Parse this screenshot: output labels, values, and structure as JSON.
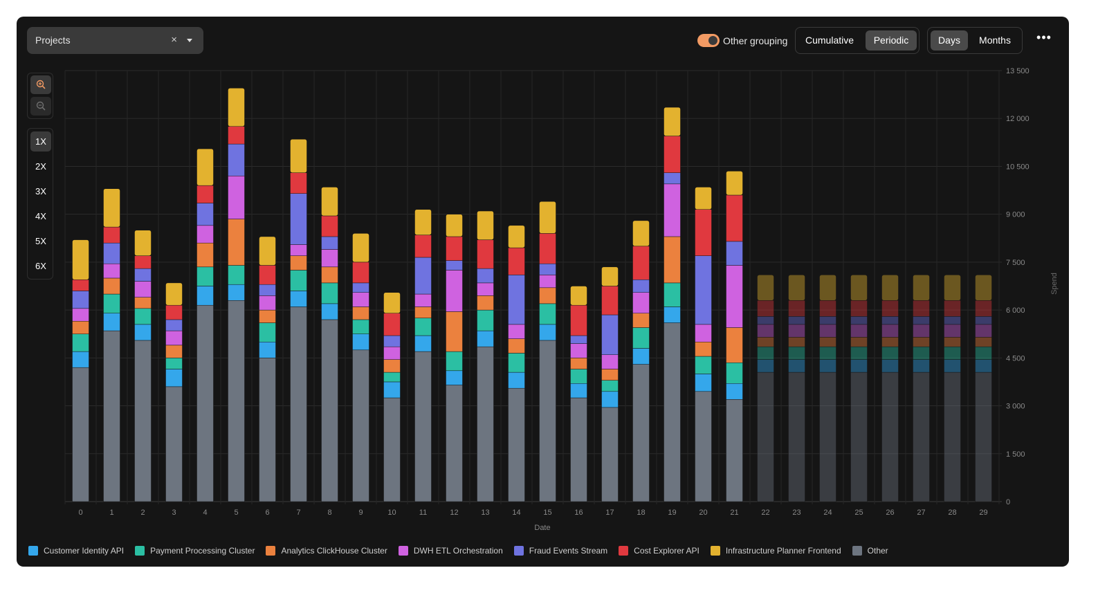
{
  "controls": {
    "project_select": {
      "label": "Projects",
      "clear_icon": "×",
      "caret_icon": "chevron-down-icon"
    },
    "other_grouping": {
      "label": "Other grouping",
      "enabled": true
    },
    "mode": {
      "options": [
        "Cumulative",
        "Periodic"
      ],
      "selected": "Periodic"
    },
    "granularity": {
      "options": [
        "Days",
        "Months"
      ],
      "selected": "Days"
    },
    "more_icon": "•••",
    "zoom_in_icon": "zoom-in-icon",
    "zoom_out_icon": "zoom-out-icon",
    "multipliers": [
      "1X",
      "2X",
      "3X",
      "4X",
      "5X",
      "6X"
    ],
    "selected_multiplier": "1X"
  },
  "colors": {
    "accent": "#f29a63",
    "Customer Identity API": "#34a7eb",
    "Payment Processing Cluster": "#2bbfa3",
    "Analytics ClickHouse Cluster": "#eb813e",
    "DWH ETL Orchestration": "#cf62e0",
    "Fraud Events Stream": "#6f73e0",
    "Cost Explorer API": "#e0393f",
    "Infrastructure Planner Frontend": "#e3b22f",
    "Other": "#6d7580"
  },
  "chart_data": {
    "type": "bar",
    "stacked": true,
    "xlabel": "Date",
    "ylabel": "Spend",
    "y_axis_side": "right",
    "ylim": [
      0,
      13500
    ],
    "yticks": [
      0,
      1500,
      3000,
      4500,
      6000,
      7500,
      9000,
      10500,
      12000,
      13500
    ],
    "ytick_labels": [
      "0",
      "1 500",
      "3 000",
      "4 500",
      "6 000",
      "7 500",
      "9 000",
      "10 500",
      "12 000",
      "13 500"
    ],
    "grid": true,
    "legend_position": "bottom-left",
    "categories": [
      "0",
      "1",
      "2",
      "3",
      "4",
      "5",
      "6",
      "7",
      "8",
      "9",
      "10",
      "11",
      "12",
      "13",
      "14",
      "15",
      "16",
      "17",
      "18",
      "19",
      "20",
      "21",
      "22",
      "23",
      "24",
      "25",
      "26",
      "27",
      "28",
      "29"
    ],
    "forecast_from_index": 22,
    "series": [
      {
        "name": "Other",
        "values": [
          4200,
          5350,
          5050,
          3600,
          6150,
          6300,
          4500,
          6100,
          5700,
          4750,
          3250,
          4700,
          3650,
          4850,
          3550,
          5050,
          3250,
          2950,
          4300,
          5600,
          3450,
          3200,
          4050,
          4050,
          4050,
          4050,
          4050,
          4050,
          4050,
          4050
        ]
      },
      {
        "name": "Customer Identity API",
        "values": [
          500,
          550,
          500,
          550,
          600,
          500,
          500,
          500,
          500,
          500,
          500,
          500,
          450,
          500,
          500,
          500,
          450,
          500,
          500,
          500,
          550,
          500,
          400,
          400,
          400,
          400,
          400,
          400,
          400,
          400
        ]
      },
      {
        "name": "Payment Processing Cluster",
        "values": [
          550,
          600,
          500,
          350,
          600,
          600,
          600,
          650,
          650,
          450,
          300,
          550,
          600,
          650,
          600,
          650,
          450,
          350,
          650,
          750,
          550,
          650,
          400,
          400,
          400,
          400,
          400,
          400,
          400,
          400
        ]
      },
      {
        "name": "Analytics ClickHouse Cluster",
        "values": [
          400,
          500,
          350,
          400,
          750,
          1450,
          400,
          450,
          500,
          400,
          400,
          350,
          1250,
          450,
          450,
          500,
          350,
          350,
          450,
          1450,
          450,
          1100,
          300,
          300,
          300,
          300,
          300,
          300,
          300,
          300
        ]
      },
      {
        "name": "DWH ETL Orchestration",
        "values": [
          400,
          450,
          500,
          450,
          550,
          1350,
          450,
          350,
          550,
          450,
          400,
          400,
          1300,
          400,
          450,
          400,
          450,
          450,
          650,
          1650,
          550,
          1950,
          400,
          400,
          400,
          400,
          400,
          400,
          400,
          400
        ]
      },
      {
        "name": "Fraud Events Stream",
        "values": [
          550,
          650,
          400,
          350,
          700,
          1000,
          350,
          1600,
          400,
          300,
          350,
          1150,
          300,
          450,
          1550,
          350,
          250,
          1250,
          400,
          350,
          2150,
          750,
          250,
          250,
          250,
          250,
          250,
          250,
          250,
          250
        ]
      },
      {
        "name": "Cost Explorer API",
        "values": [
          350,
          500,
          400,
          450,
          550,
          550,
          600,
          650,
          650,
          650,
          700,
          700,
          750,
          900,
          850,
          950,
          950,
          900,
          1050,
          1150,
          1450,
          1450,
          500,
          500,
          500,
          500,
          500,
          500,
          500,
          500
        ]
      },
      {
        "name": "Infrastructure Planner Frontend",
        "values": [
          1250,
          1200,
          800,
          700,
          1150,
          1200,
          900,
          1050,
          900,
          900,
          650,
          800,
          700,
          900,
          700,
          1000,
          600,
          600,
          800,
          900,
          700,
          750,
          800,
          800,
          800,
          800,
          800,
          800,
          800,
          800
        ]
      }
    ],
    "legend": [
      "Customer Identity API",
      "Payment Processing Cluster",
      "Analytics ClickHouse Cluster",
      "DWH ETL Orchestration",
      "Fraud Events Stream",
      "Cost Explorer API",
      "Infrastructure Planner Frontend",
      "Other"
    ]
  }
}
